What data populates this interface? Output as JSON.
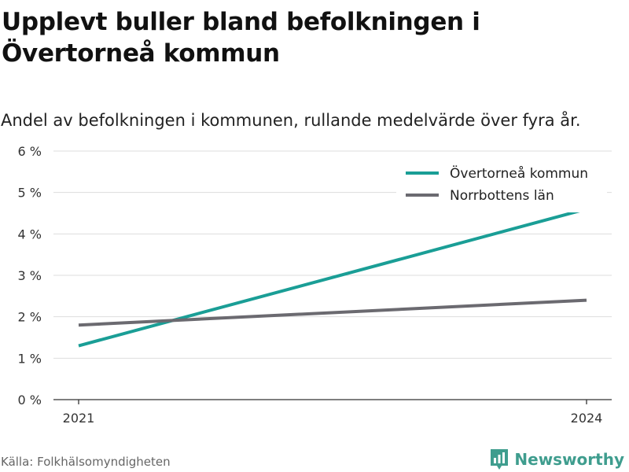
{
  "title": "Upplevt buller bland befolkningen i Övertorneå kommun",
  "subtitle": "Andel av befolkningen i kommunen, rullande medelvärde över fyra år.",
  "source": "Källa: Folkhälsomyndigheten",
  "brand": {
    "name": "Newsworthy",
    "icon": "bar-chart-logo-icon"
  },
  "colors": {
    "kommun": "#1a9e96",
    "lan": "#6b6a70",
    "grid": "#dddddd",
    "axis": "#555555"
  },
  "chart_data": {
    "type": "line",
    "x": [
      "2021",
      "2024"
    ],
    "series": [
      {
        "name": "Övertorneå kommun",
        "values": [
          1.3,
          4.6
        ]
      },
      {
        "name": "Norrbottens län",
        "values": [
          1.8,
          2.4
        ]
      }
    ],
    "y_ticks": [
      "0 %",
      "1 %",
      "2 %",
      "3 %",
      "4 %",
      "5 %",
      "6 %"
    ],
    "ylim": [
      0,
      6
    ],
    "grid": true,
    "legend_position": "top-right"
  }
}
